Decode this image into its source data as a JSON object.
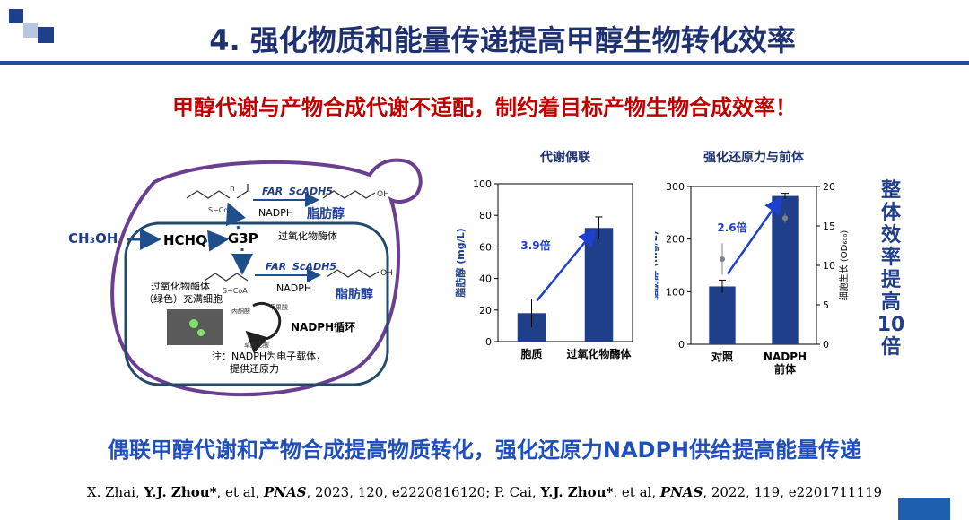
{
  "slide": {
    "title": "4. 强化物质和能量传递提高甲醇生物转化效率",
    "headline": "甲醇代谢与产物合成代谢不适配，制约着目标产物生物合成效率！",
    "conclusion": "偶联甲醇代谢和产物合成提高物质转化，强化还原力NADPH供给提高能量传递",
    "overall_improvement": "整体效率提高10倍",
    "citation": {
      "author1": "X. Zhai,",
      "name1": "Y.J. Zhou*",
      "etal1": ", et al,",
      "journal1": "PNAS",
      "rest1": ", 2023, 120, e2220816120;",
      "author2": "P. Cai,",
      "name2": "Y.J. Zhou*",
      "etal2": ", et al,",
      "journal2": "PNAS",
      "rest2": ", 2022, 119, e2201711119"
    }
  },
  "diagram": {
    "substrate": "CH₃OH",
    "hchq": "HCHQ",
    "g3p": "G3P",
    "far_top": "FAR",
    "scadh5_top": "ScADH5",
    "nadph_top": "NADPH",
    "product_top": "脂肪醇",
    "peroxisome_label": "过氧化物酶体",
    "far_inner": "FAR",
    "scadh5_inner": "ScADH5",
    "nadph_inner": "NADPH",
    "product_inner": "脂肪醇",
    "peroxisome_note_line1": "过氧化物酶体",
    "peroxisome_note_line2": "（绿色）充满细胞",
    "nadph_cycle": "NADPH循环",
    "cycle_node_1": "丙酮酸",
    "cycle_node_2": "苹果酸",
    "cycle_node_3": "草酰乙酸",
    "note_line1": "注：NADPH为电子载体，",
    "note_line2": "提供还原力",
    "scoa": "S−CoA",
    "oh": "OH",
    "n": "n"
  },
  "chart_data": [
    {
      "type": "bar",
      "title": "代谢偶联",
      "categories": [
        "胞质",
        "过氧化物酶体"
      ],
      "values": [
        18,
        72
      ],
      "errors": [
        9,
        7
      ],
      "ylabel": "脂肪醇 (mg/L)",
      "ylim": [
        0,
        100
      ],
      "yticks": [
        0,
        20,
        40,
        60,
        80,
        100
      ],
      "annotation": "3.9倍",
      "bar_color": "#1f3f8a"
    },
    {
      "type": "bar",
      "title": "强化还原力与前体",
      "categories": [
        "对照",
        "NADPH前体"
      ],
      "category_lines": [
        [
          "对照"
        ],
        [
          "NADPH",
          "前体"
        ]
      ],
      "values": [
        110,
        282
      ],
      "errors": [
        12,
        5
      ],
      "ylabel": "脂肪醇 (mg/L)",
      "ylim": [
        0,
        300
      ],
      "yticks": [
        0,
        100,
        200,
        300
      ],
      "y2label": "细胞生长 (OD₆₀₀)",
      "y2lim": [
        0,
        20
      ],
      "y2ticks": [
        0,
        5,
        10,
        15,
        20
      ],
      "growth": {
        "values": [
          10.8,
          16
        ],
        "errors": [
          2,
          0.6
        ],
        "color": "#808080"
      },
      "annotation": "2.6倍",
      "bar_color": "#1f3f8a"
    }
  ]
}
